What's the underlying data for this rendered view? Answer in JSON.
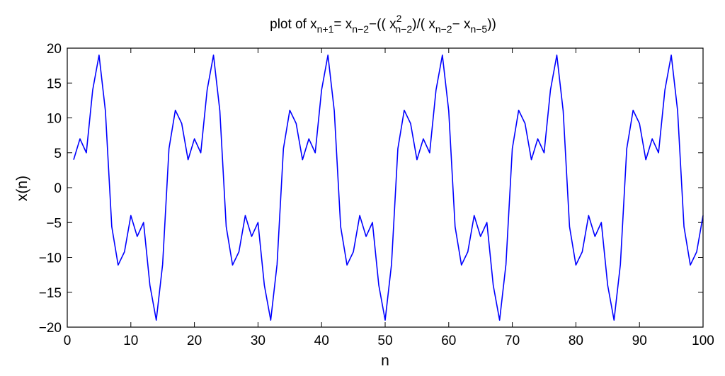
{
  "chart_data": {
    "type": "line",
    "title": {
      "prefix": "plot of ",
      "lhs_var": "x",
      "lhs_sub": "n+1",
      "eq": "= ",
      "var1": "x",
      "sub1": "n−2",
      "mid1": "−(( ",
      "var2": "x",
      "sup2": "2",
      "sub2": "n−2",
      "mid2": ")/( ",
      "var3": "x",
      "sub3": "n−2",
      "mid3": "− ",
      "var4": "x",
      "sub4": "n−5",
      "end": "))"
    },
    "xlabel": "n",
    "ylabel": "x(n)",
    "xlim": [
      0,
      100
    ],
    "ylim": [
      -20,
      20
    ],
    "xticks": [
      0,
      10,
      20,
      30,
      40,
      50,
      60,
      70,
      80,
      90,
      100
    ],
    "xtick_labels": [
      "0",
      "10",
      "20",
      "30",
      "40",
      "50",
      "60",
      "70",
      "80",
      "90",
      "100"
    ],
    "yticks": [
      20,
      15,
      10,
      5,
      0,
      -5,
      -10,
      -15,
      -20
    ],
    "ytick_labels": [
      "20",
      "15",
      "10",
      "5",
      "0",
      "−5",
      "−10",
      "−15",
      "−20"
    ],
    "grid": false,
    "series": [
      {
        "color": "#0000ff",
        "x": [
          1,
          2,
          3,
          4,
          5,
          6,
          7,
          8,
          9,
          10,
          11,
          12,
          13,
          14,
          15,
          16,
          17,
          18,
          19,
          20,
          21,
          22,
          23,
          24,
          25,
          26,
          27,
          28,
          29,
          30,
          31,
          32,
          33,
          34,
          35,
          36,
          37,
          38,
          39,
          40,
          41,
          42,
          43,
          44,
          45,
          46,
          47,
          48,
          49,
          50,
          51,
          52,
          53,
          54,
          55,
          56,
          57,
          58,
          59,
          60,
          61,
          62,
          63,
          64,
          65,
          66,
          67,
          68,
          69,
          70,
          71,
          72,
          73,
          74,
          75,
          76,
          77,
          78,
          79,
          80,
          81,
          82,
          83,
          84,
          85,
          86,
          87,
          88,
          89,
          90,
          91,
          92,
          93,
          94,
          95,
          96,
          97,
          98,
          99,
          100
        ],
        "y": [
          4,
          7,
          5,
          14,
          19,
          11,
          -5.6,
          -11.1,
          -9.2,
          -4,
          -7,
          -5,
          -14,
          -19,
          -11,
          5.6,
          11.1,
          9.2,
          4,
          7,
          5,
          14,
          19,
          11,
          -5.6,
          -11.1,
          -9.2,
          -4,
          -7,
          -5,
          -14,
          -19,
          -11,
          5.6,
          11.1,
          9.2,
          4,
          7,
          5,
          14,
          19,
          11,
          -5.6,
          -11.1,
          -9.2,
          -4,
          -7,
          -5,
          -14,
          -19,
          -11,
          5.6,
          11.1,
          9.2,
          4,
          7,
          5,
          14,
          19,
          11,
          -5.6,
          -11.1,
          -9.2,
          -4,
          -7,
          -5,
          -14,
          -19,
          -11,
          5.6,
          11.1,
          9.2,
          4,
          7,
          5,
          14,
          19,
          11,
          -5.6,
          -11.1,
          -9.2,
          -4,
          -7,
          -5,
          -14,
          -19,
          -11,
          5.6,
          11.1,
          9.2,
          4,
          7,
          5,
          14,
          19,
          11,
          -5.6,
          -11.1,
          -9.2,
          -4
        ]
      }
    ]
  }
}
